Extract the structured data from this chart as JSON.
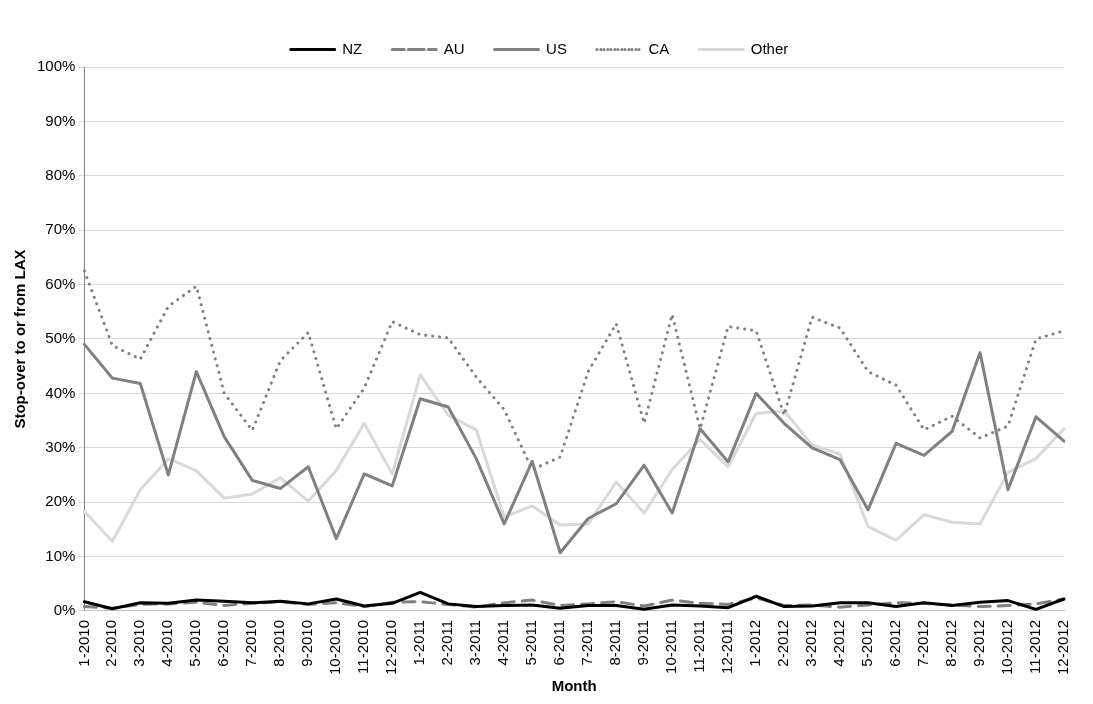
{
  "chart_data": {
    "type": "line",
    "xlabel": "Month",
    "ylabel": "Stop-over to or from LAX",
    "categories": [
      "1-2010",
      "2-2010",
      "3-2010",
      "4-2010",
      "5-2010",
      "6-2010",
      "7-2010",
      "8-2010",
      "9-2010",
      "10-2010",
      "11-2010",
      "12-2010",
      "1-2011",
      "2-2011",
      "3-2011",
      "4-2011",
      "5-2011",
      "6-2011",
      "7-2011",
      "8-2011",
      "9-2011",
      "10-2011",
      "11-2011",
      "12-2011",
      "1-2012",
      "2-2012",
      "3-2012",
      "4-2012",
      "5-2012",
      "6-2012",
      "7-2012",
      "8-2012",
      "9-2012",
      "10-2012",
      "11-2012",
      "12-2012"
    ],
    "series": [
      {
        "name": "NZ",
        "color": "#000000",
        "line_style": "solid",
        "values": [
          1.7,
          0.4,
          1.5,
          1.4,
          2,
          1.8,
          1.5,
          1.8,
          1.3,
          2.2,
          0.9,
          1.4,
          3.4,
          1.3,
          0.8,
          1.0,
          1.1,
          0.5,
          1.0,
          1.0,
          0.3,
          1.1,
          0.9,
          0.6,
          2.7,
          0.8,
          0.9,
          1.5,
          1.5,
          0.8,
          1.5,
          1.0,
          1.6,
          1.9,
          0.3,
          2.2
        ]
      },
      {
        "name": "AU",
        "color": "#808080",
        "line_style": "dashed",
        "values": [
          0.8,
          0.5,
          1.2,
          1.3,
          1.6,
          1.0,
          1.4,
          1.7,
          1.2,
          1.5,
          0.8,
          1.6,
          1.7,
          1.2,
          0.7,
          1.5,
          2.0,
          1.0,
          1.3,
          1.7,
          0.9,
          2.0,
          1.4,
          1.2,
          2.4,
          1.0,
          1.1,
          0.7,
          1.1,
          1.5,
          1.4,
          1.1,
          0.8,
          1.0,
          1.3,
          2.2
        ]
      },
      {
        "name": "US",
        "color": "#808080",
        "line_style": "solid",
        "values": [
          49,
          42.8,
          41.8,
          25,
          44,
          32,
          24,
          22.5,
          26.5,
          13.3,
          25.2,
          23,
          39,
          37.5,
          28,
          16,
          27.5,
          10.7,
          17,
          19.7,
          26.8,
          18,
          33.5,
          27.4,
          40,
          34.5,
          30,
          27.8,
          18.6,
          30.8,
          28.6,
          33,
          47.5,
          22.3,
          35.7,
          31.2
        ]
      },
      {
        "name": "CA",
        "color": "#808080",
        "line_style": "dotted",
        "values": [
          62.5,
          48.8,
          46.3,
          56,
          59.7,
          40,
          33.2,
          46,
          51.2,
          33.5,
          41,
          53.2,
          50.8,
          50.2,
          43,
          37,
          26,
          28.3,
          44,
          52.8,
          34.5,
          54.5,
          33.5,
          52.3,
          51.5,
          36,
          54,
          52,
          44,
          41.5,
          33.3,
          35.8,
          31.8,
          34,
          50,
          51.5
        ]
      },
      {
        "name": "Other",
        "color": "#d9d9d9",
        "line_style": "solid",
        "values": [
          18.3,
          12.8,
          22.3,
          28,
          25.8,
          20.7,
          21.5,
          24.5,
          20.2,
          25.8,
          34.5,
          25.2,
          43.4,
          36,
          33.3,
          17.3,
          19.3,
          15.8,
          16,
          23.7,
          18,
          26,
          31.5,
          26.5,
          36.3,
          36.8,
          30.5,
          28.8,
          15.5,
          13,
          17.7,
          16.3,
          16,
          25.5,
          28,
          33.5
        ]
      }
    ],
    "ylim": [
      0,
      100
    ],
    "yticks": [
      {
        "value": 0,
        "label": "0%"
      },
      {
        "value": 10,
        "label": "10%"
      },
      {
        "value": 20,
        "label": "20%"
      },
      {
        "value": 30,
        "label": "30%"
      },
      {
        "value": 40,
        "label": "40%"
      },
      {
        "value": 50,
        "label": "50%"
      },
      {
        "value": 60,
        "label": "60%"
      },
      {
        "value": 70,
        "label": "70%"
      },
      {
        "value": 80,
        "label": "80%"
      },
      {
        "value": 90,
        "label": "90%"
      },
      {
        "value": 100,
        "label": "100%"
      }
    ],
    "grid": "y",
    "legend": "top",
    "marker": "none"
  }
}
